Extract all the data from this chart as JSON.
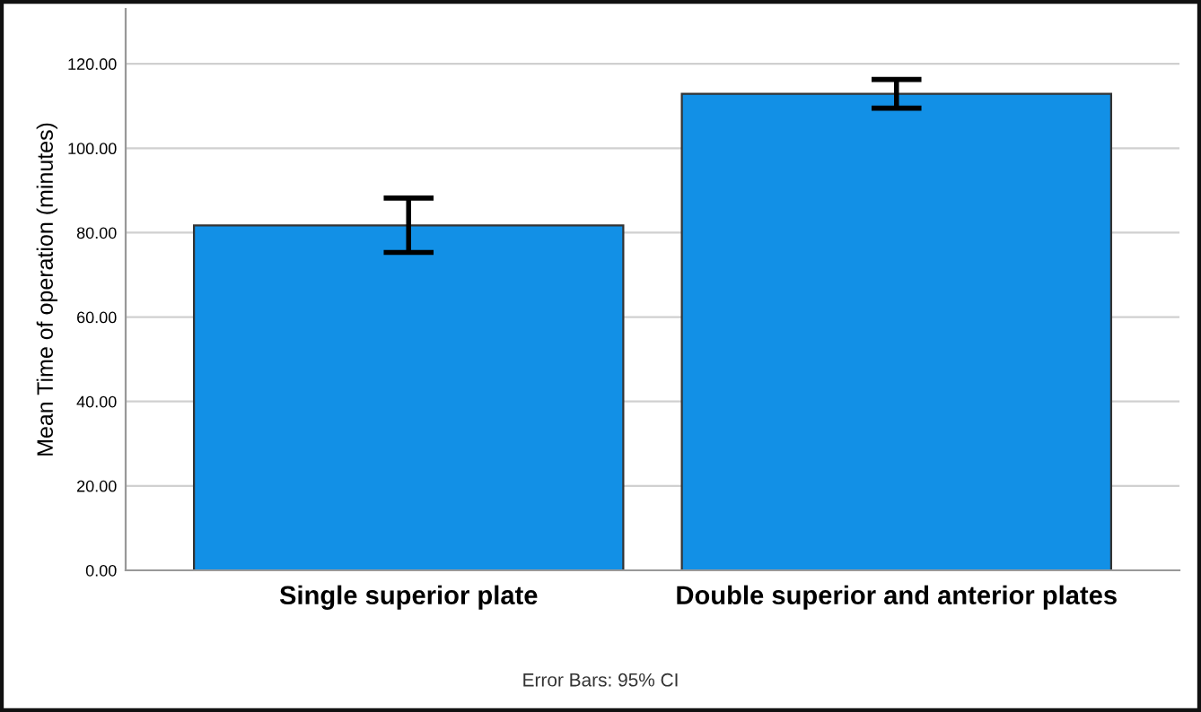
{
  "chart_data": {
    "type": "bar",
    "ylabel": "Mean Time of operation (minutes)",
    "categories": [
      "Single superior plate",
      "Double superior and anterior plates"
    ],
    "values": [
      81.7,
      112.9
    ],
    "errors": [
      [
        75.3,
        88.2
      ],
      [
        109.5,
        116.3
      ]
    ],
    "color": "#1290e6",
    "ylim": [
      0,
      133
    ],
    "yticks": [
      {
        "value": 0,
        "label": "0.00"
      },
      {
        "value": 20,
        "label": "20.00"
      },
      {
        "value": 40,
        "label": "40.00"
      },
      {
        "value": 60,
        "label": "60.00"
      },
      {
        "value": 80,
        "label": "80.00"
      },
      {
        "value": 100,
        "label": "100.00"
      },
      {
        "value": 120,
        "label": "120.00"
      }
    ],
    "grid": "y",
    "annotations": [
      "Error Bars: 95% CI"
    ]
  }
}
